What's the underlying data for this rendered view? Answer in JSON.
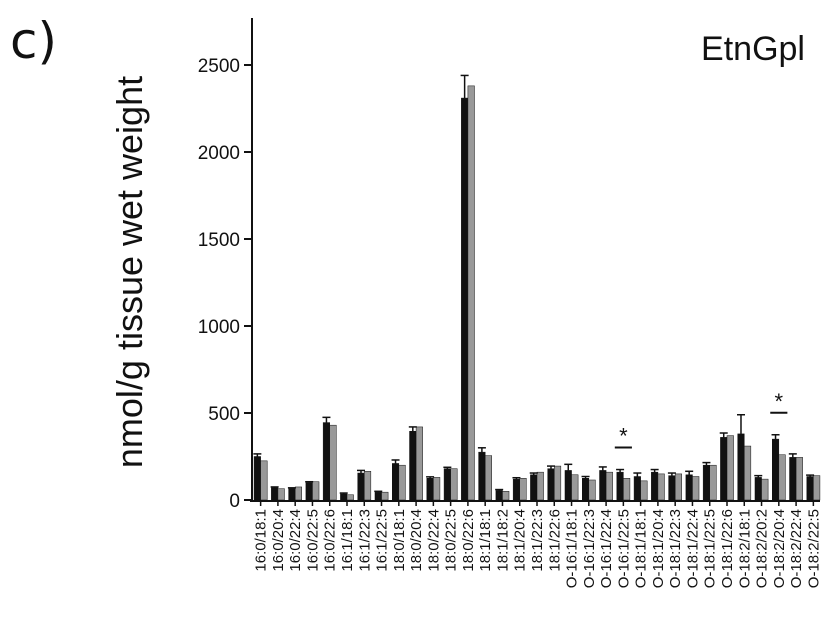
{
  "panel_label": "c)",
  "chart_data": {
    "type": "bar",
    "title": "EtnGpl",
    "xlabel": "",
    "ylabel": "nmol/g tissue wet weight",
    "ylim": [
      0,
      2700
    ],
    "yticks": [
      0,
      500,
      1000,
      1500,
      2000,
      2500
    ],
    "grid": false,
    "legend": "none",
    "colors": [
      "#111111",
      "#999999"
    ],
    "categories": [
      "16:0/18:1",
      "16:0/20:4",
      "16:0/22:4",
      "16:0/22:5",
      "16:0/22:6",
      "16:1/18:1",
      "16:1/22:3",
      "16:1/22:5",
      "18:0/18:1",
      "18:0/20:4",
      "18:0/22:4",
      "18:0/22:5",
      "18:0/22:6",
      "18:1/18:1",
      "18:1/18:2",
      "18:1/20:4",
      "18:1/22:3",
      "18:1/22:6",
      "O-16:1/18:1",
      "O-16:1/22:3",
      "O-16:1/22:4",
      "O-16:1/22:5",
      "O-18:1/18:1",
      "O-18:1/20:4",
      "O-18:1/22:3",
      "O-18:1/22:4",
      "O-18:1/22:5",
      "O-18:1/22:6",
      "O-18:2/18:1",
      "O-18:2/20:2",
      "O-18:2/20:4",
      "O-18:2/22:4",
      "O-18:2/22:5"
    ],
    "series": [
      {
        "values": [
          250,
          70,
          65,
          100,
          445,
          35,
          155,
          45,
          210,
          395,
          125,
          180,
          2310,
          275,
          55,
          120,
          145,
          180,
          170,
          125,
          170,
          160,
          135,
          160,
          140,
          145,
          200,
          360,
          380,
          130,
          350,
          245,
          135
        ],
        "errors": [
          15,
          5,
          5,
          5,
          30,
          5,
          15,
          5,
          20,
          25,
          8,
          8,
          130,
          25,
          5,
          8,
          10,
          15,
          35,
          10,
          20,
          15,
          20,
          15,
          15,
          20,
          15,
          25,
          110,
          10,
          25,
          20,
          8
        ]
      },
      {
        "values": [
          225,
          65,
          75,
          105,
          430,
          30,
          165,
          45,
          200,
          420,
          130,
          180,
          2380,
          255,
          50,
          125,
          160,
          195,
          145,
          115,
          160,
          125,
          110,
          150,
          150,
          135,
          200,
          370,
          310,
          120,
          260,
          245,
          140
        ]
      }
    ],
    "significance": [
      {
        "category": "O-16:1/22:5",
        "label": "*"
      },
      {
        "category": "O-18:2/20:4",
        "label": "*"
      }
    ]
  }
}
